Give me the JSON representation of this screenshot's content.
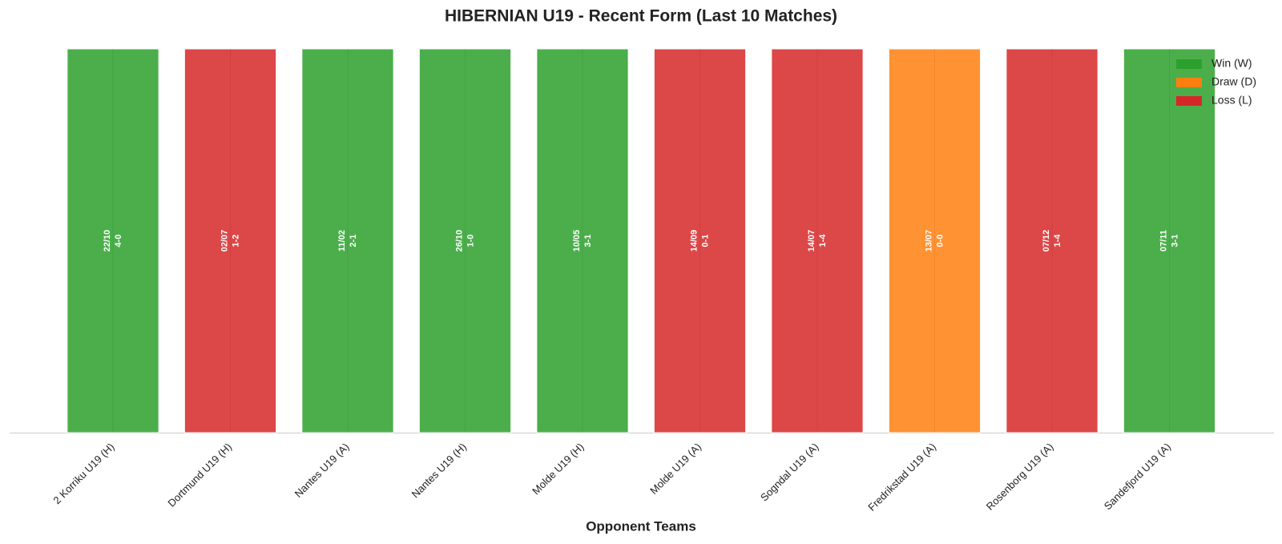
{
  "chart_data": {
    "type": "bar",
    "title": "HIBERNIAN U19 - Recent Form (Last 10 Matches)",
    "x_label": "Opponent Teams",
    "categories": [
      "2 Korriku U19 (H)",
      "Dortmund U19 (H)",
      "Nantes U19 (A)",
      "Nantes U19 (H)",
      "Molde U19 (H)",
      "Molde U19 (A)",
      "Sogndal U19 (A)",
      "Fredrikstad U19 (A)",
      "Rosenborg U19 (A)",
      "Sandefjord U19 (A)"
    ],
    "values": [
      1,
      1,
      1,
      1,
      1,
      1,
      1,
      1,
      1,
      1
    ],
    "dates": [
      "22/10",
      "02/07",
      "11/02",
      "26/10",
      "10/05",
      "14/09",
      "14/07",
      "13/07",
      "07/12",
      "07/11"
    ],
    "scores": [
      "4-0",
      "1-2",
      "2-1",
      "1-0",
      "3-1",
      "0-1",
      "1-4",
      "0-0",
      "1-4",
      "3-1"
    ],
    "colors": [
      "#2ca02c",
      "#d62728",
      "#2ca02c",
      "#2ca02c",
      "#2ca02c",
      "#d62728",
      "#d62728",
      "#ff7f0e",
      "#d62728",
      "#2ca02c"
    ],
    "ylim": [
      0,
      1
    ],
    "legend": [
      {
        "name": "Win (W)",
        "color": "#2ca02c"
      },
      {
        "name": "Draw (D)",
        "color": "#ff7f0e"
      },
      {
        "name": "Loss (L)",
        "color": "#d62728"
      }
    ],
    "legend_position": "upper right"
  }
}
